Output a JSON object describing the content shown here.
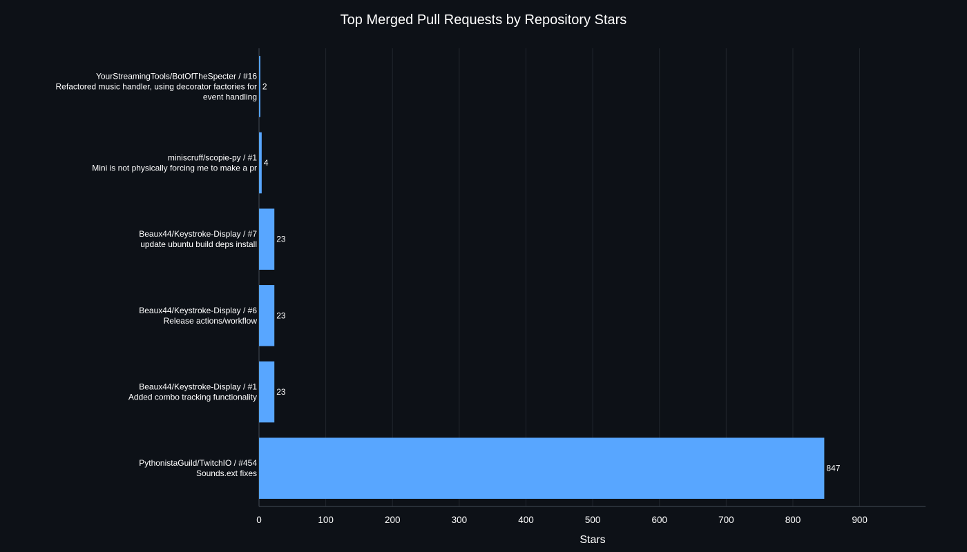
{
  "chart_data": {
    "type": "bar",
    "orientation": "horizontal",
    "title": "Top Merged Pull Requests by Repository Stars",
    "xlabel": "Stars",
    "ylabel": "",
    "xlim": [
      0,
      1000
    ],
    "x_ticks": [
      0,
      100,
      200,
      300,
      400,
      500,
      600,
      700,
      800,
      900
    ],
    "grid": true,
    "bar_color": "#58a6ff",
    "categories": [
      [
        "YourStreamingTools/BotOfTheSpecter / #16",
        "Refactored music handler, using decorator factories for",
        "event handling"
      ],
      [
        "miniscruff/scopie-py / #1",
        "Mini is not physically forcing me to make a pr"
      ],
      [
        "Beaux44/Keystroke-Display / #7",
        "update ubuntu build deps install"
      ],
      [
        "Beaux44/Keystroke-Display / #6",
        "Release actions/workflow"
      ],
      [
        "Beaux44/Keystroke-Display / #1",
        "Added combo tracking functionality"
      ],
      [
        "PythonistaGuild/TwitchIO / #454",
        "Sounds.ext fixes"
      ]
    ],
    "values": [
      2,
      4,
      23,
      23,
      23,
      847
    ]
  }
}
